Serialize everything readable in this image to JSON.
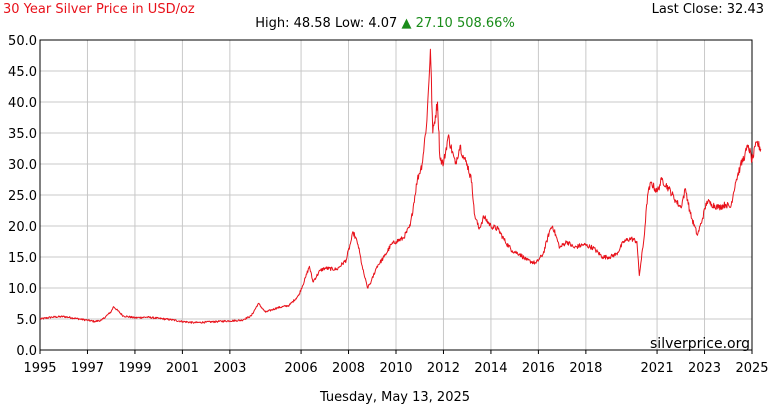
{
  "header": {
    "title": "30 Year Silver Price in USD/oz",
    "last_close_label": "Last Close:",
    "last_close_value": "32.43",
    "high_label": "High:",
    "high_value": "48.58",
    "low_label": "Low:",
    "low_value": "4.07",
    "change_arrow": "▲",
    "change_value": "27.10",
    "change_pct": "508.66%"
  },
  "footer": {
    "date": "Tuesday, May 13, 2025"
  },
  "colors": {
    "line": "#e8111a",
    "grid": "#c8c8c8",
    "up": "#1a8c1a"
  },
  "chart_data": {
    "type": "line",
    "title": "30 Year Silver Price in USD/oz",
    "xlabel": "",
    "ylabel": "",
    "watermark": "silverprice.org",
    "grid": true,
    "ylim": [
      0,
      50
    ],
    "xlim": [
      1995.0,
      2025.0
    ],
    "y_ticks": [
      "0.0",
      "5.0",
      "10.0",
      "15.0",
      "20.0",
      "25.0",
      "30.0",
      "35.0",
      "40.0",
      "45.0",
      "50.0"
    ],
    "x_ticks": [
      "1995",
      "1997",
      "1999",
      "2001",
      "2003",
      "2006",
      "2008",
      "2010",
      "2012",
      "2014",
      "2016",
      "2018",
      "2021",
      "2023",
      "2025"
    ],
    "series": [
      {
        "values_note": "",
        "x": [
          1995.0,
          1995.5,
          1996.0,
          1996.5,
          1997.0,
          1997.3,
          1997.6,
          1998.0,
          1998.1,
          1998.5,
          1999.0,
          1999.5,
          2000.0,
          2000.5,
          2001.0,
          2001.5,
          2002.0,
          2002.5,
          2003.0,
          2003.5,
          2003.9,
          2004.2,
          2004.5,
          2005.0,
          2005.5,
          2005.9,
          2006.2,
          2006.35,
          2006.5,
          2006.8,
          2007.0,
          2007.5,
          2007.9,
          2008.1,
          2008.2,
          2008.4,
          2008.6,
          2008.8,
          2008.95,
          2009.2,
          2009.5,
          2009.8,
          2010.0,
          2010.3,
          2010.6,
          2010.9,
          2011.1,
          2011.3,
          2011.45,
          2011.55,
          2011.75,
          2011.85,
          2012.0,
          2012.2,
          2012.5,
          2012.7,
          2012.85,
          2013.0,
          2013.2,
          2013.3,
          2013.5,
          2013.7,
          2014.0,
          2014.3,
          2014.6,
          2014.9,
          2015.2,
          2015.5,
          2015.9,
          2016.2,
          2016.5,
          2016.6,
          2016.9,
          2017.2,
          2017.5,
          2017.9,
          2018.3,
          2018.7,
          2019.0,
          2019.3,
          2019.6,
          2019.9,
          2020.15,
          2020.25,
          2020.45,
          2020.6,
          2020.75,
          2021.0,
          2021.2,
          2021.5,
          2021.8,
          2022.0,
          2022.2,
          2022.4,
          2022.7,
          2022.9,
          2023.1,
          2023.3,
          2023.6,
          2023.9,
          2024.1,
          2024.3,
          2024.5,
          2024.7,
          2024.85,
          2025.0,
          2025.2,
          2025.37
        ],
        "y": [
          5.0,
          5.3,
          5.4,
          5.1,
          4.8,
          4.6,
          4.8,
          6.2,
          7.0,
          5.5,
          5.2,
          5.3,
          5.1,
          4.9,
          4.6,
          4.4,
          4.5,
          4.6,
          4.7,
          4.8,
          5.5,
          7.5,
          6.1,
          6.8,
          7.2,
          8.8,
          11.8,
          13.5,
          11.0,
          12.8,
          13.2,
          13.0,
          14.5,
          17.5,
          19.0,
          17.0,
          13.0,
          10.0,
          11.0,
          13.5,
          15.0,
          17.0,
          17.5,
          18.0,
          20.0,
          27.5,
          30.0,
          37.0,
          48.5,
          35.0,
          40.0,
          31.0,
          30.0,
          34.5,
          30.0,
          33.0,
          31.0,
          30.0,
          27.0,
          22.0,
          19.5,
          21.5,
          20.0,
          19.5,
          17.5,
          16.0,
          15.5,
          14.5,
          14.0,
          15.5,
          19.5,
          20.0,
          16.5,
          17.5,
          16.5,
          17.0,
          16.5,
          15.0,
          15.0,
          15.5,
          17.5,
          18.0,
          17.5,
          12.0,
          18.0,
          25.0,
          27.0,
          25.5,
          27.5,
          26.0,
          24.0,
          23.0,
          26.0,
          22.0,
          18.5,
          21.0,
          24.0,
          23.5,
          23.0,
          23.5,
          23.0,
          27.0,
          29.5,
          31.5,
          33.0,
          30.5,
          33.5,
          32.43
        ]
      }
    ]
  }
}
